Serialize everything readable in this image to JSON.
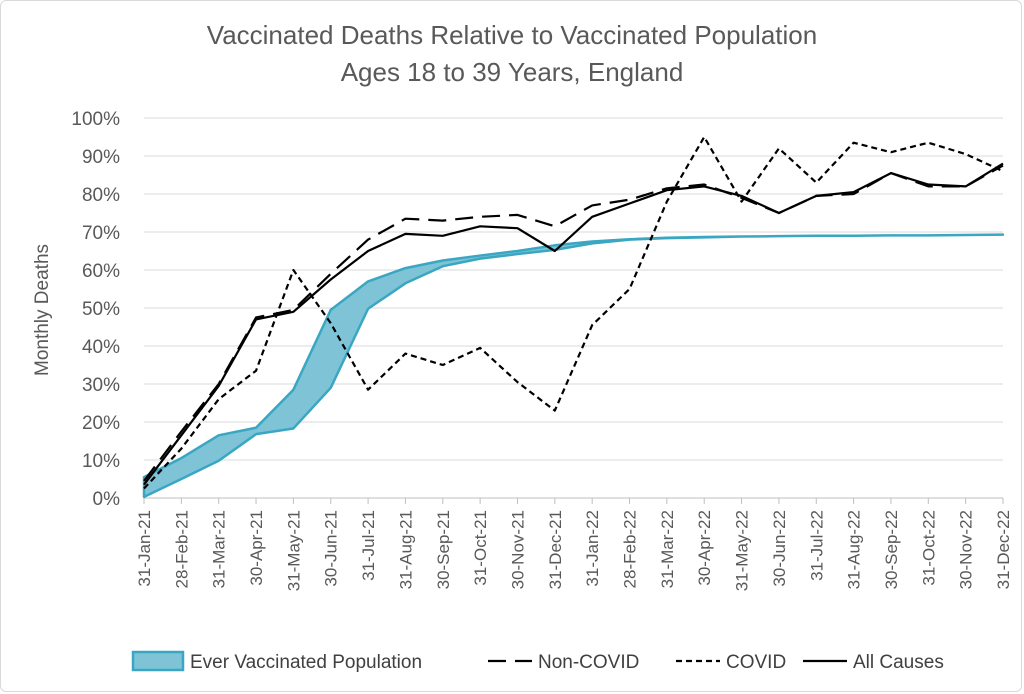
{
  "chart_data": {
    "type": "line",
    "title": "Vaccinated Deaths Relative to Vaccinated Population",
    "subtitle": "Ages 18 to 39 Years, England",
    "ylabel": "Monthly Deaths",
    "xlabel": "",
    "ylim": [
      0,
      100
    ],
    "yticks": [
      "0%",
      "10%",
      "20%",
      "30%",
      "40%",
      "50%",
      "60%",
      "70%",
      "80%",
      "90%",
      "100%"
    ],
    "categories": [
      "31-Jan-21",
      "28-Feb-21",
      "31-Mar-21",
      "30-Apr-21",
      "31-May-21",
      "30-Jun-21",
      "31-Jul-21",
      "31-Aug-21",
      "30-Sep-21",
      "31-Oct-21",
      "30-Nov-21",
      "31-Dec-21",
      "31-Jan-22",
      "28-Feb-22",
      "31-Mar-22",
      "30-Apr-22",
      "31-May-22",
      "30-Jun-22",
      "31-Jul-22",
      "31-Aug-22",
      "30-Sep-22",
      "31-Oct-22",
      "30-Nov-22",
      "31-Dec-22"
    ],
    "grid": true,
    "legend_position": "bottom",
    "band": {
      "name": "Ever Vaccinated Population",
      "upper": [
        5.5,
        10.5,
        16.5,
        18.5,
        28.5,
        49.5,
        57,
        60.5,
        62.5,
        63.8,
        65,
        66.5,
        67.5,
        68.1,
        68.5,
        68.7,
        68.8,
        68.9,
        69,
        69,
        69.1,
        69.1,
        69.2,
        69.3
      ],
      "lower": [
        0.3,
        5,
        9.8,
        16.8,
        18.3,
        29,
        49.8,
        56.5,
        61,
        63,
        64.2,
        65.3,
        67,
        68,
        68.4,
        68.6,
        68.8,
        68.9,
        69,
        69,
        69.1,
        69.1,
        69.2,
        69.3
      ],
      "fill": "#7ec3d6",
      "stroke": "#3aa7c2"
    },
    "series": [
      {
        "name": "Non-COVID",
        "style": "longdash",
        "values": [
          4.5,
          17.5,
          30,
          47.5,
          49.5,
          59,
          68,
          73.5,
          73,
          74,
          74.5,
          71.5,
          77,
          78.5,
          81.5,
          82.5,
          79,
          75,
          79.5,
          80,
          85.5,
          82,
          82,
          87.5
        ]
      },
      {
        "name": "COVID",
        "style": "shortdash",
        "values": [
          2.5,
          13,
          26,
          33.5,
          60,
          46,
          28.5,
          38,
          35,
          39.5,
          30.5,
          23,
          45.5,
          55,
          78,
          95,
          78,
          92,
          83,
          93.5,
          91,
          93.5,
          90.5,
          86
        ]
      },
      {
        "name": "All Causes",
        "style": "solid",
        "values": [
          3.5,
          16.5,
          29.5,
          47,
          49,
          57.5,
          65,
          69.5,
          69,
          71.5,
          71,
          65,
          74,
          77.5,
          81,
          82,
          79.5,
          75,
          79.5,
          80.5,
          85.5,
          82.5,
          82,
          88
        ]
      }
    ]
  }
}
